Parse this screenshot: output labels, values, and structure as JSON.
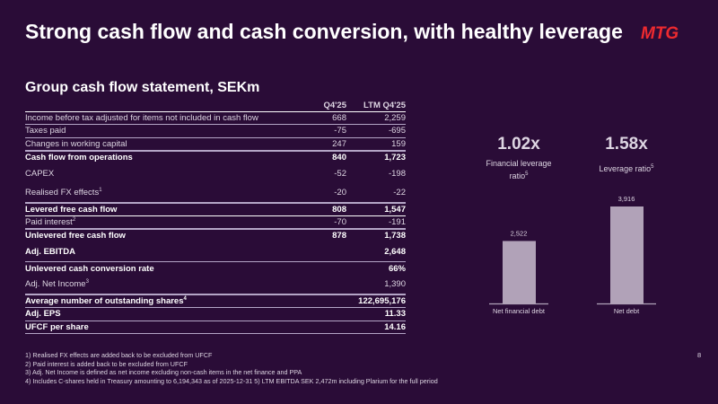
{
  "title": "Strong cash flow and cash conversion, with healthy leverage",
  "logo": "MTG",
  "subtitle": "Group cash flow statement, SEKm",
  "table": {
    "headers": [
      "Q4'25",
      "LTM Q4'25"
    ],
    "rows": [
      {
        "label": "Income before tax adjusted for items not included in cash flow",
        "q": "668",
        "ltm": "2,259"
      },
      {
        "label": "Taxes paid",
        "q": "-75",
        "ltm": "-695"
      },
      {
        "label": "Changes in working capital",
        "q": "247",
        "ltm": "159"
      },
      {
        "label": "Cash flow from operations",
        "q": "840",
        "ltm": "1,723"
      },
      {
        "label": "CAPEX",
        "q": "-52",
        "ltm": "-198"
      },
      {
        "label": "Realised FX effects",
        "sup": "1",
        "q": "-20",
        "ltm": "-22"
      },
      {
        "label": "Levered free cash flow",
        "q": "808",
        "ltm": "1,547"
      },
      {
        "label": "Paid interest",
        "sup": "2",
        "q": "-70",
        "ltm": "-191"
      },
      {
        "label": "Unlevered free cash flow",
        "q": "878",
        "ltm": "1,738"
      },
      {
        "label": "Adj. EBITDA",
        "q": "",
        "ltm": "2,648"
      },
      {
        "label": "Unlevered cash conversion rate",
        "q": "",
        "ltm": "66%"
      },
      {
        "label": "Adj. Net Income",
        "sup": "3",
        "q": "",
        "ltm": "1,390"
      },
      {
        "label": "Average number of outstanding shares",
        "sup": "4",
        "q": "",
        "ltm": "122,695,176"
      },
      {
        "label": "Adj. EPS",
        "q": "",
        "ltm": "11.33"
      },
      {
        "label": "UFCF per share",
        "q": "",
        "ltm": "14.16"
      }
    ]
  },
  "kpis": [
    {
      "value": "1.02x",
      "label": "Financial leverage ratio",
      "sup": "5"
    },
    {
      "value": "1.58x",
      "label": "Leverage ratio",
      "sup": "5"
    }
  ],
  "chart_data": {
    "type": "bar",
    "categories": [
      "Net financial debt",
      "Net debt"
    ],
    "values": [
      2522,
      3916
    ],
    "value_labels": [
      "2,522",
      "3,916"
    ],
    "ylim": [
      0,
      3916
    ]
  },
  "notes": [
    "1) Realised FX effects are added back to be excluded from UFCF",
    "2) Paid interest is added back to be excluded from UFCF",
    "3) Adj. Net Income is defined as net income excluding non-cash items in the net finance and PPA",
    "4) Includes C-shares held in Treasury amounting to 6,194,343 as of 2025-12-31  5) LTM EBITDA SEK 2,472m including Plarium for the full period"
  ],
  "page": "8",
  "colors": {
    "background": "#2a0c37",
    "logo": "#ee2a2f",
    "bar": "#b1a2b8"
  }
}
